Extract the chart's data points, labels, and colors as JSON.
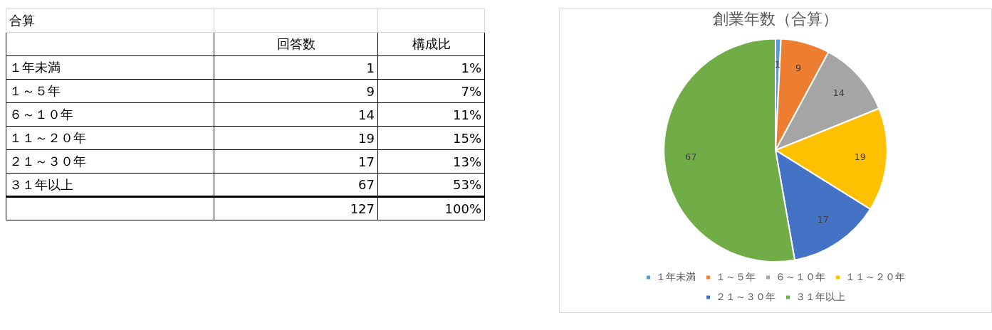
{
  "chart_data": [
    {
      "type": "other",
      "title": "合算",
      "annotations": [
        "回答数",
        "構成比",
        "１年未満",
        "1",
        "1%",
        "１～５年",
        "9",
        "7%",
        "６～１０年",
        "14",
        "11%",
        "１１～２０年",
        "19",
        "15%",
        "２１～３０年",
        "17",
        "13%",
        "３１年以上",
        "67",
        "53%",
        "127",
        "100%"
      ]
    },
    {
      "type": "pie",
      "title": "創業年数（合算）",
      "categories": [
        "１年未満",
        "１～５年",
        "６～１０年",
        "１１～２０年",
        "２１～３０年",
        "３１年以上"
      ],
      "values": [
        1,
        9,
        14,
        19,
        17,
        67
      ],
      "colors": [
        "#5b9bd5",
        "#ed7d31",
        "#a5a5a5",
        "#ffc000",
        "#4472c4",
        "#70ad47"
      ],
      "data_labels": true,
      "legend": "bottom"
    }
  ]
}
